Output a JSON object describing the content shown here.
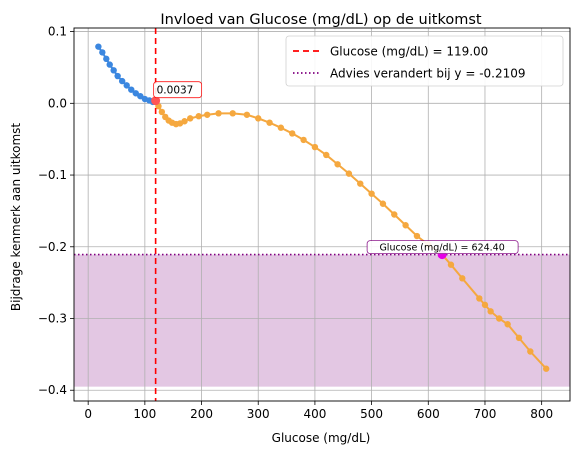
{
  "chart_data": {
    "type": "line",
    "title": "Invloed van Glucose (mg/dL) op de uitkomst",
    "xlabel": "Glucose (mg/dL)",
    "ylabel": "Bijdrage kenmerk aan uitkomst",
    "xlim": [
      -25,
      850
    ],
    "ylim": [
      -0.415,
      0.105
    ],
    "grid": true,
    "legend_position": "top-right",
    "x_ticks": [
      0,
      100,
      200,
      300,
      400,
      500,
      600,
      700,
      800
    ],
    "y_ticks": [
      0.1,
      0.0,
      -0.1,
      -0.2,
      -0.3,
      -0.4
    ],
    "x_tick_labels": [
      "0",
      "100",
      "200",
      "300",
      "400",
      "500",
      "600",
      "700",
      "800"
    ],
    "y_tick_labels": [
      "0.1",
      "0.0",
      "−0.1",
      "−0.2",
      "−0.3",
      "−0.4"
    ],
    "colors": {
      "below_marker": "#3b87e0",
      "above_marker": "#f5a83f",
      "vertical_line": "#ff0000",
      "threshold_line": "#800080",
      "shaded_region": "#dcb9dc",
      "highlight_point": "#e600e6"
    },
    "series": [
      {
        "x": [
          18,
          25,
          32,
          38,
          45,
          52,
          60,
          68,
          76,
          84,
          92,
          100,
          108,
          114,
          119,
          124,
          130,
          136,
          142,
          148,
          155,
          162,
          170,
          180,
          195,
          210,
          230,
          255,
          280,
          300,
          320,
          340,
          360,
          380,
          400,
          420,
          440,
          460,
          480,
          500,
          520,
          540,
          560,
          580,
          600,
          624.4,
          640,
          660,
          690,
          700,
          710,
          725,
          740,
          760,
          780,
          808
        ],
        "y": [
          0.079,
          0.071,
          0.062,
          0.054,
          0.046,
          0.038,
          0.031,
          0.025,
          0.019,
          0.014,
          0.01,
          0.006,
          0.004,
          0.002,
          0.0037,
          -0.004,
          -0.012,
          -0.019,
          -0.024,
          -0.027,
          -0.029,
          -0.028,
          -0.025,
          -0.021,
          -0.018,
          -0.016,
          -0.014,
          -0.014,
          -0.016,
          -0.021,
          -0.027,
          -0.034,
          -0.042,
          -0.051,
          -0.061,
          -0.072,
          -0.085,
          -0.098,
          -0.112,
          -0.126,
          -0.14,
          -0.155,
          -0.17,
          -0.185,
          -0.197,
          -0.2109,
          -0.225,
          -0.244,
          -0.272,
          -0.281,
          -0.29,
          -0.3,
          -0.308,
          -0.327,
          -0.346,
          -0.37
        ]
      }
    ],
    "vertical_line_x": 119.0,
    "threshold_y": -0.2109,
    "shaded_range": [
      -0.395,
      -0.2109
    ],
    "legend": [
      {
        "label": "Glucose (mg/dL) = 119.00",
        "style": "dashed",
        "color": "#ff0000"
      },
      {
        "label": "Advies verandert bij y = -0.2109",
        "style": "dotted",
        "color": "#800080"
      }
    ],
    "annotations": [
      {
        "text": "0.0037",
        "x": 119.0,
        "y": 0.0037,
        "color": "#ff0000"
      },
      {
        "text": "Glucose (mg/dL) = 624.40",
        "x": 624.4,
        "y": -0.2109,
        "color": "#800080"
      }
    ]
  }
}
